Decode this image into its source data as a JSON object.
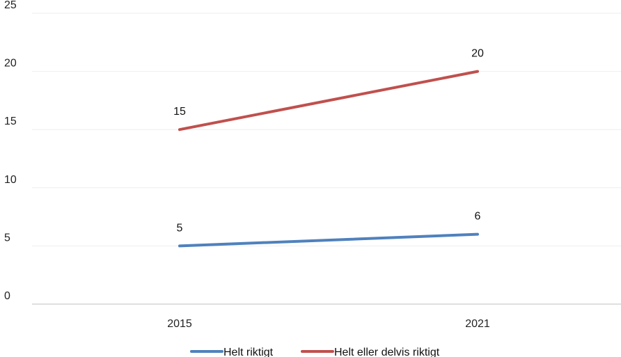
{
  "chart_data": {
    "type": "line",
    "title": "",
    "xlabel": "",
    "ylabel": "",
    "categories": [
      "2015",
      "2021"
    ],
    "ylim": [
      0,
      25
    ],
    "yticks": [
      "0",
      "5",
      "10",
      "15",
      "20",
      "25"
    ],
    "grid": true,
    "legend_position": "bottom",
    "series": [
      {
        "name": "Helt riktigt",
        "values": [
          5,
          6
        ],
        "labels": [
          "5",
          "6"
        ],
        "color": "#4f81bd"
      },
      {
        "name": "Helt eller delvis riktigt",
        "values": [
          15,
          20
        ],
        "labels": [
          "15",
          "20"
        ],
        "color": "#c0504d"
      }
    ]
  }
}
